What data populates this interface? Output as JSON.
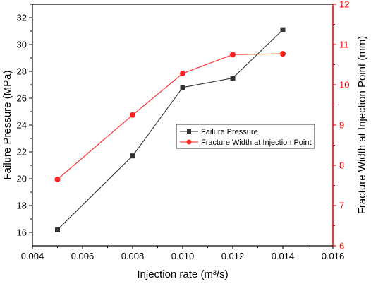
{
  "colors": {
    "series_1": "#333333",
    "series_2": "#ff2020",
    "axis_left": "#000000",
    "axis_right": "#ff0000"
  },
  "chart_data": {
    "type": "line",
    "title": "",
    "xlabel": "Injection rate (m³/s)",
    "ylabel": "Failure Pressure (MPa)",
    "ylabel_right": "Fracture Width at Injection Point (mm)",
    "xlim": [
      0.004,
      0.016
    ],
    "ylim": [
      15,
      33
    ],
    "ylim_right": [
      6,
      12
    ],
    "x_ticks": [
      "0.004",
      "0.006",
      "0.008",
      "0.010",
      "0.012",
      "0.014",
      "0.016"
    ],
    "y_ticks": [
      "16",
      "18",
      "20",
      "22",
      "24",
      "26",
      "28",
      "30",
      "32"
    ],
    "y_right_ticks": [
      "6",
      "7",
      "8",
      "9",
      "10",
      "11",
      "12"
    ],
    "grid": false,
    "legend_position": "center-right",
    "series": [
      {
        "name": "Failure Pressure",
        "axis": "left",
        "marker": "square",
        "x": [
          0.005,
          0.008,
          0.01,
          0.012,
          0.014
        ],
        "values": [
          16.2,
          21.7,
          26.8,
          27.5,
          31.1
        ]
      },
      {
        "name": "Fracture Width at Injection Point",
        "axis": "right",
        "marker": "circle",
        "x": [
          0.005,
          0.008,
          0.01,
          0.012,
          0.014
        ],
        "values": [
          7.65,
          9.25,
          10.28,
          10.75,
          10.77
        ]
      }
    ]
  }
}
